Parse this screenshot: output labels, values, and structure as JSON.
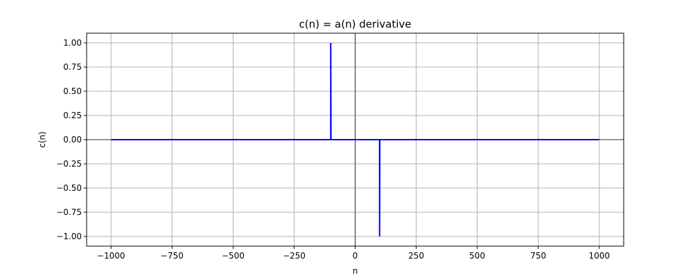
{
  "chart_data": {
    "type": "line",
    "title": "c(n) = a(n) derivative",
    "xlabel": "n",
    "ylabel": "c(n)",
    "xlim": [
      -1100,
      1100
    ],
    "ylim": [
      -1.1,
      1.1
    ],
    "xticks": [
      -1000,
      -750,
      -500,
      -250,
      0,
      250,
      500,
      750,
      1000
    ],
    "yticks": [
      1.0,
      0.75,
      0.5,
      0.25,
      0.0,
      -0.25,
      -0.5,
      -0.75,
      -1.0
    ],
    "xtick_labels": [
      "−1000",
      "−750",
      "−500",
      "−250",
      "0",
      "250",
      "500",
      "750",
      "1000"
    ],
    "ytick_labels": [
      "1.00",
      "0.75",
      "0.50",
      "0.25",
      "0.00",
      "−0.25",
      "−0.50",
      "−0.75",
      "−1.00"
    ],
    "grid": true,
    "zero_lines": true,
    "series": [
      {
        "color": "#0000ff",
        "x": [
          -1000,
          -101,
          -100,
          -100,
          -99,
          99,
          100,
          100,
          101,
          1000
        ],
        "y": [
          0,
          0,
          0,
          1,
          0,
          0,
          0,
          -1,
          0,
          0
        ]
      }
    ]
  }
}
